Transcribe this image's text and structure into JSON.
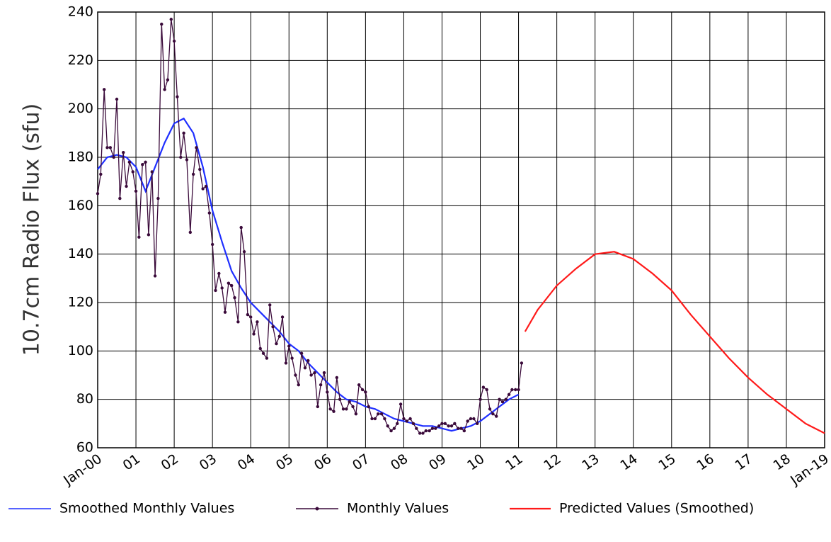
{
  "chart_data": {
    "type": "line",
    "y_label": "10.7cm Radio Flux (sfu)",
    "xlim": [
      2000,
      2019
    ],
    "ylim": [
      60,
      240
    ],
    "grid": true,
    "xticks": [
      {
        "value": 2000,
        "label": "Jan-00"
      },
      {
        "value": 2001,
        "label": "01"
      },
      {
        "value": 2002,
        "label": "02"
      },
      {
        "value": 2003,
        "label": "03"
      },
      {
        "value": 2004,
        "label": "04"
      },
      {
        "value": 2005,
        "label": "05"
      },
      {
        "value": 2006,
        "label": "06"
      },
      {
        "value": 2007,
        "label": "07"
      },
      {
        "value": 2008,
        "label": "08"
      },
      {
        "value": 2009,
        "label": "09"
      },
      {
        "value": 2010,
        "label": "10"
      },
      {
        "value": 2011,
        "label": "11"
      },
      {
        "value": 2012,
        "label": "12"
      },
      {
        "value": 2013,
        "label": "13"
      },
      {
        "value": 2014,
        "label": "14"
      },
      {
        "value": 2015,
        "label": "15"
      },
      {
        "value": 2016,
        "label": "16"
      },
      {
        "value": 2017,
        "label": "17"
      },
      {
        "value": 2018,
        "label": "18"
      },
      {
        "value": 2019,
        "label": "Jan-19"
      }
    ],
    "yticks": [
      60,
      80,
      100,
      120,
      140,
      160,
      180,
      200,
      220,
      240
    ],
    "series": [
      {
        "name": "Smoothed Monthly Values",
        "color": "#1f2fff",
        "marker": false,
        "x": [
          2000,
          2000.25,
          2000.5,
          2000.75,
          2001,
          2001.25,
          2001.5,
          2001.75,
          2002,
          2002.25,
          2002.5,
          2002.75,
          2003,
          2003.25,
          2003.5,
          2003.75,
          2004,
          2004.25,
          2004.5,
          2004.75,
          2005,
          2005.25,
          2005.5,
          2005.75,
          2006,
          2006.25,
          2006.5,
          2006.75,
          2007,
          2007.25,
          2007.5,
          2007.75,
          2008,
          2008.25,
          2008.5,
          2008.75,
          2009,
          2009.25,
          2009.5,
          2009.75,
          2010,
          2010.25,
          2010.5,
          2010.75,
          2011
        ],
        "values": [
          175,
          180,
          181,
          180,
          176,
          166,
          176,
          186,
          194,
          196,
          190,
          176,
          158,
          145,
          133,
          126,
          120,
          116,
          112,
          108,
          103,
          100,
          95,
          91,
          87,
          83,
          80,
          79,
          77,
          76,
          74,
          72,
          71,
          70,
          69,
          69,
          68,
          67,
          68,
          69,
          71,
          74,
          77,
          80,
          82
        ]
      },
      {
        "name": "Monthly Values",
        "color": "#3a0a3a",
        "marker": true,
        "x": [
          2000,
          2000.08,
          2000.17,
          2000.25,
          2000.33,
          2000.42,
          2000.5,
          2000.58,
          2000.67,
          2000.75,
          2000.83,
          2000.92,
          2001,
          2001.08,
          2001.17,
          2001.25,
          2001.33,
          2001.42,
          2001.5,
          2001.58,
          2001.67,
          2001.75,
          2001.83,
          2001.92,
          2002,
          2002.08,
          2002.17,
          2002.25,
          2002.33,
          2002.42,
          2002.5,
          2002.58,
          2002.67,
          2002.75,
          2002.83,
          2002.92,
          2003,
          2003.08,
          2003.17,
          2003.25,
          2003.33,
          2003.42,
          2003.5,
          2003.58,
          2003.67,
          2003.75,
          2003.83,
          2003.92,
          2004,
          2004.08,
          2004.17,
          2004.25,
          2004.33,
          2004.42,
          2004.5,
          2004.58,
          2004.67,
          2004.75,
          2004.83,
          2004.92,
          2005,
          2005.08,
          2005.17,
          2005.25,
          2005.33,
          2005.42,
          2005.5,
          2005.58,
          2005.67,
          2005.75,
          2005.83,
          2005.92,
          2006,
          2006.08,
          2006.17,
          2006.25,
          2006.33,
          2006.42,
          2006.5,
          2006.58,
          2006.67,
          2006.75,
          2006.83,
          2006.92,
          2007,
          2007.08,
          2007.17,
          2007.25,
          2007.33,
          2007.42,
          2007.5,
          2007.58,
          2007.67,
          2007.75,
          2007.83,
          2007.92,
          2008,
          2008.08,
          2008.17,
          2008.25,
          2008.33,
          2008.42,
          2008.5,
          2008.58,
          2008.67,
          2008.75,
          2008.83,
          2008.92,
          2009,
          2009.08,
          2009.17,
          2009.25,
          2009.33,
          2009.42,
          2009.5,
          2009.58,
          2009.67,
          2009.75,
          2009.83,
          2009.92,
          2010,
          2010.08,
          2010.17,
          2010.25,
          2010.33,
          2010.42,
          2010.5,
          2010.58,
          2010.67,
          2010.75,
          2010.83,
          2010.92,
          2011,
          2011.08
        ],
        "values": [
          165,
          173,
          208,
          184,
          184,
          180,
          204,
          163,
          182,
          168,
          178,
          174,
          166,
          147,
          177,
          178,
          148,
          174,
          131,
          163,
          235,
          208,
          212,
          237,
          228,
          205,
          180,
          190,
          179,
          149,
          173,
          184,
          175,
          167,
          168,
          157,
          144,
          125,
          132,
          126,
          116,
          128,
          127,
          122,
          112,
          151,
          141,
          115,
          114,
          107,
          112,
          101,
          99,
          97,
          119,
          110,
          103,
          106,
          114,
          95,
          102,
          97,
          90,
          86,
          99,
          93,
          96,
          90,
          91,
          77,
          86,
          91,
          83,
          76,
          75,
          89,
          80,
          76,
          76,
          79,
          77,
          74,
          86,
          84,
          83,
          77,
          72,
          72,
          74,
          74,
          72,
          69,
          67,
          68,
          70,
          78,
          72,
          71,
          72,
          70,
          68,
          66,
          66,
          67,
          67,
          68,
          68,
          69,
          70,
          70,
          69,
          69,
          70,
          68,
          68,
          67,
          71,
          72,
          72,
          70,
          80,
          85,
          84,
          76,
          74,
          73,
          80,
          79,
          80,
          82,
          84,
          84,
          84,
          95
        ]
      },
      {
        "name": "Predicted Values (Smoothed)",
        "color": "#ff1a1a",
        "marker": false,
        "x": [
          2011.17,
          2011.5,
          2012,
          2012.5,
          2013,
          2013.5,
          2014,
          2014.5,
          2015,
          2015.5,
          2016,
          2016.5,
          2017,
          2017.5,
          2018,
          2018.5,
          2019
        ],
        "values": [
          108,
          117,
          127,
          134,
          140,
          141,
          138,
          132,
          125,
          115,
          106,
          97,
          89,
          82,
          76,
          70,
          66
        ]
      }
    ]
  }
}
